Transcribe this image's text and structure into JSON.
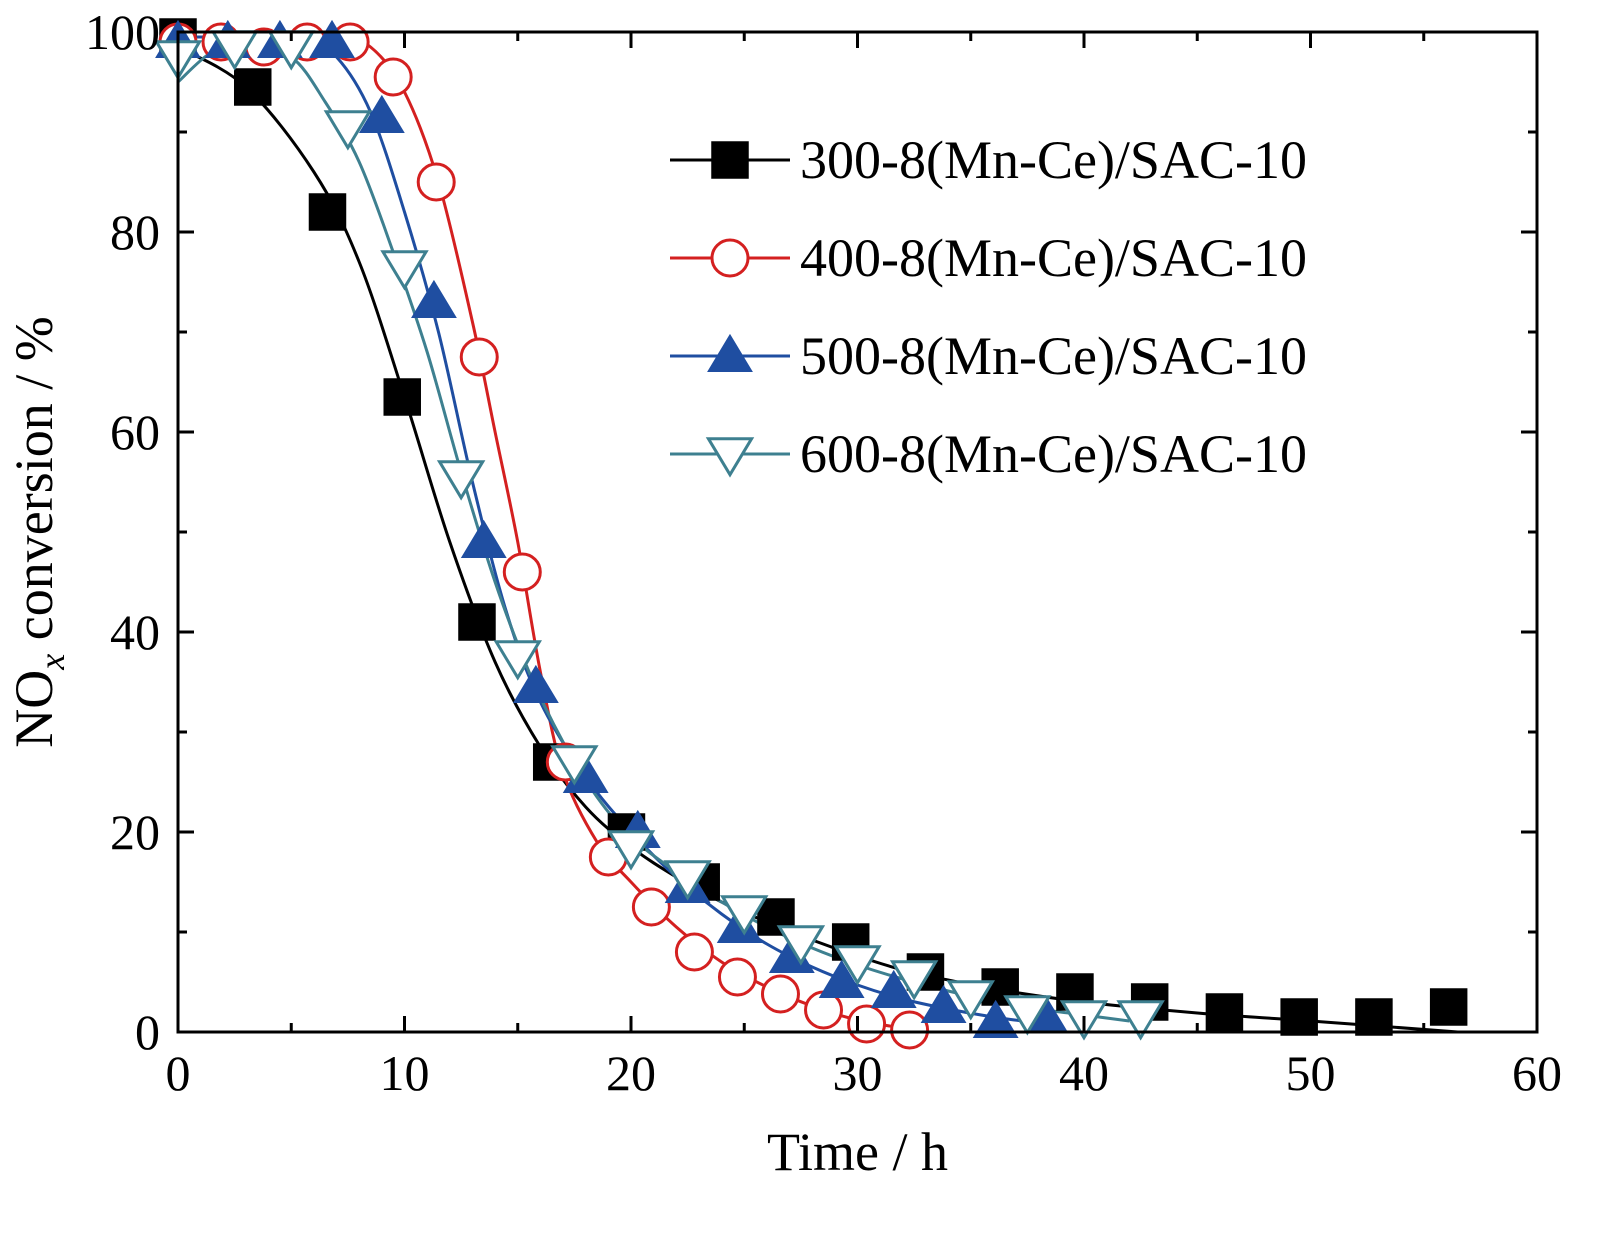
{
  "chart_data": {
    "type": "line",
    "xlabel": "Time / h",
    "ylabel": {
      "prefix": "NO",
      "subscript": "x",
      "suffix": " conversion / %"
    },
    "xlim": [
      0,
      60
    ],
    "ylim": [
      0,
      100
    ],
    "x_ticks": [
      "0",
      "10",
      "20",
      "30",
      "40",
      "50",
      "60"
    ],
    "y_ticks": [
      "0",
      "20",
      "40",
      "60",
      "80",
      "100"
    ],
    "x_tick_values": [
      0,
      10,
      20,
      30,
      40,
      50,
      60
    ],
    "y_tick_values": [
      0,
      20,
      40,
      60,
      80,
      100
    ],
    "grid": false,
    "legend_position": "top-right",
    "series": [
      {
        "name": "300-8(Mn-Ce)/SAC-10",
        "color": "#000000",
        "marker": "square",
        "filled": true,
        "points": [
          [
            0,
            99.5
          ],
          [
            3.3,
            94.5
          ],
          [
            6.6,
            82
          ],
          [
            9.9,
            63.5
          ],
          [
            13.2,
            41
          ],
          [
            16.5,
            27
          ],
          [
            19.8,
            20
          ],
          [
            23.1,
            15
          ],
          [
            26.4,
            11.5
          ],
          [
            29.7,
            9
          ],
          [
            33,
            6
          ],
          [
            36.3,
            4.5
          ],
          [
            39.6,
            4
          ],
          [
            42.9,
            3
          ],
          [
            46.2,
            2
          ],
          [
            49.5,
            1.5
          ],
          [
            52.8,
            1.5
          ],
          [
            56.1,
            2.5
          ]
        ],
        "curve": [
          [
            0,
            98.5
          ],
          [
            3,
            94.5
          ],
          [
            6,
            86
          ],
          [
            8,
            77
          ],
          [
            10,
            63.5
          ],
          [
            12,
            49
          ],
          [
            14,
            37
          ],
          [
            16,
            28.5
          ],
          [
            18,
            22.5
          ],
          [
            20,
            18.5
          ],
          [
            22,
            15.5
          ],
          [
            24,
            13
          ],
          [
            26,
            11
          ],
          [
            28,
            9.2
          ],
          [
            30,
            7.6
          ],
          [
            32,
            6.2
          ],
          [
            34,
            5.2
          ],
          [
            36,
            4.3
          ],
          [
            40,
            3
          ],
          [
            45,
            1.9
          ],
          [
            50,
            1.1
          ],
          [
            56.5,
            0
          ]
        ]
      },
      {
        "name": "400-8(Mn-Ce)/SAC-10",
        "color": "#d42020",
        "marker": "circle",
        "filled": false,
        "points": [
          [
            0,
            99
          ],
          [
            1.9,
            99
          ],
          [
            3.8,
            98.5
          ],
          [
            5.7,
            99
          ],
          [
            7.6,
            99
          ],
          [
            9.5,
            95.5
          ],
          [
            11.4,
            85
          ],
          [
            13.3,
            67.5
          ],
          [
            15.2,
            46
          ],
          [
            17.1,
            27
          ],
          [
            19,
            17.5
          ],
          [
            20.9,
            12.5
          ],
          [
            22.8,
            8
          ],
          [
            24.7,
            5.5
          ],
          [
            26.6,
            3.8
          ],
          [
            28.5,
            2.2
          ],
          [
            30.4,
            0.8
          ],
          [
            32.3,
            0.2
          ]
        ],
        "curve": [
          [
            0,
            99.5
          ],
          [
            4,
            99.5
          ],
          [
            7,
            99.5
          ],
          [
            8.5,
            98.5
          ],
          [
            10,
            94
          ],
          [
            11.5,
            85
          ],
          [
            13,
            71
          ],
          [
            14,
            60
          ],
          [
            15,
            49
          ],
          [
            16,
            36
          ],
          [
            17,
            26
          ],
          [
            18.5,
            19
          ],
          [
            20,
            15
          ],
          [
            22,
            10.5
          ],
          [
            24,
            7
          ],
          [
            26,
            4.5
          ],
          [
            28,
            2.6
          ],
          [
            30,
            1.2
          ],
          [
            32.5,
            0.2
          ]
        ]
      },
      {
        "name": "500-8(Mn-Ce)/SAC-10",
        "color": "#1f4ea1",
        "marker": "triangle-up",
        "filled": true,
        "points": [
          [
            0,
            99
          ],
          [
            2.2,
            99
          ],
          [
            4.5,
            99
          ],
          [
            6.8,
            99
          ],
          [
            9,
            91.5
          ],
          [
            11.3,
            73
          ],
          [
            13.5,
            49
          ],
          [
            15.8,
            34.5
          ],
          [
            18,
            25.5
          ],
          [
            20.3,
            20
          ],
          [
            22.5,
            14.5
          ],
          [
            24.8,
            10.5
          ],
          [
            27.1,
            7.5
          ],
          [
            29.3,
            5
          ],
          [
            31.6,
            4
          ],
          [
            33.8,
            2.5
          ],
          [
            36.1,
            1
          ],
          [
            38.3,
            1.5
          ]
        ],
        "curve": [
          [
            0,
            99.5
          ],
          [
            3,
            99.5
          ],
          [
            5.5,
            99.5
          ],
          [
            7,
            97.5
          ],
          [
            8.5,
            92
          ],
          [
            10,
            82
          ],
          [
            11.5,
            70
          ],
          [
            13,
            55
          ],
          [
            14.5,
            42
          ],
          [
            16,
            33
          ],
          [
            18,
            25.5
          ],
          [
            20,
            20
          ],
          [
            22,
            15.5
          ],
          [
            24,
            11.8
          ],
          [
            26,
            8.8
          ],
          [
            28,
            6.5
          ],
          [
            30,
            4.7
          ],
          [
            32,
            3.3
          ],
          [
            34,
            2.3
          ],
          [
            36,
            1.5
          ],
          [
            38.3,
            0.8
          ]
        ]
      },
      {
        "name": "600-8(Mn-Ce)/SAC-10",
        "color": "#3e8090",
        "marker": "triangle-down",
        "filled": false,
        "points": [
          [
            0,
            97.5
          ],
          [
            2.5,
            98.5
          ],
          [
            5,
            98.5
          ],
          [
            7.5,
            90.5
          ],
          [
            10,
            76.5
          ],
          [
            12.5,
            55.5
          ],
          [
            15,
            37.5
          ],
          [
            17.5,
            27
          ],
          [
            20,
            18.5
          ],
          [
            22.5,
            15.5
          ],
          [
            25,
            12
          ],
          [
            27.5,
            9
          ],
          [
            30,
            7
          ],
          [
            32.5,
            5.5
          ],
          [
            35,
            3.5
          ],
          [
            37.5,
            2
          ],
          [
            40,
            1.5
          ],
          [
            42.5,
            1.5
          ]
        ],
        "curve": [
          [
            0,
            95
          ],
          [
            1.5,
            98
          ],
          [
            3,
            98.8
          ],
          [
            5,
            97.5
          ],
          [
            6.5,
            93
          ],
          [
            8,
            87
          ],
          [
            9.5,
            78
          ],
          [
            11,
            68
          ],
          [
            12.5,
            56
          ],
          [
            14,
            45
          ],
          [
            15.5,
            36
          ],
          [
            17,
            29
          ],
          [
            18.5,
            23.5
          ],
          [
            20,
            19.5
          ],
          [
            22,
            16
          ],
          [
            24,
            13
          ],
          [
            26,
            10.5
          ],
          [
            28,
            8.4
          ],
          [
            30,
            6.7
          ],
          [
            32,
            5.3
          ],
          [
            34,
            4.1
          ],
          [
            36,
            3.1
          ],
          [
            38,
            2.3
          ],
          [
            40,
            1.7
          ],
          [
            42,
            1.1
          ]
        ]
      }
    ]
  }
}
